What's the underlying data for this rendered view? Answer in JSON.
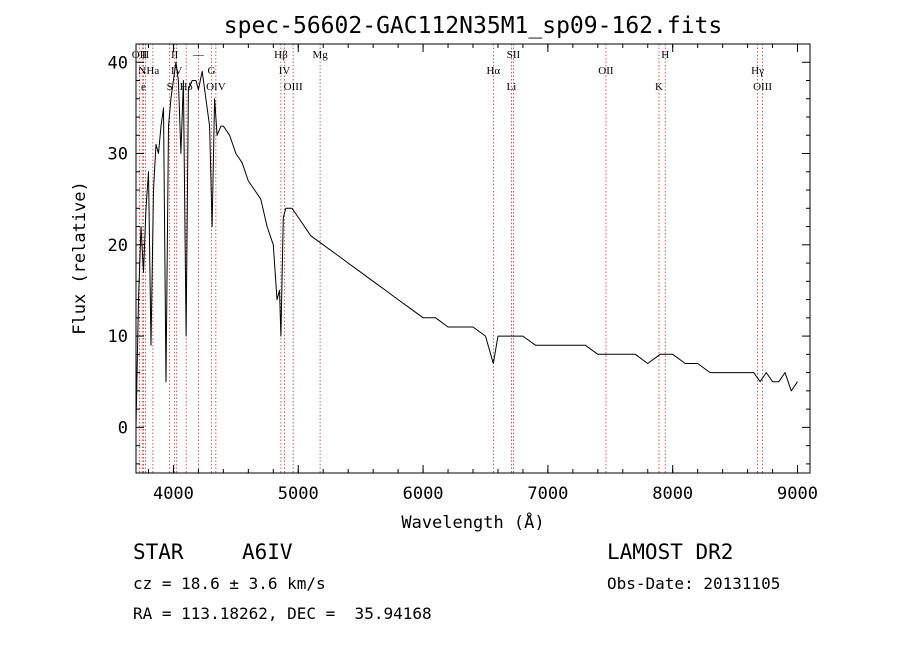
{
  "chart_data": {
    "type": "line",
    "title": "spec-56602-GAC112N35M1_sp09-162.fits",
    "xlabel": "Wavelength (Å)",
    "ylabel": "Flux (relative)",
    "xlim": [
      3700,
      9100
    ],
    "ylim": [
      -5,
      42
    ],
    "x_ticks": [
      4000,
      5000,
      6000,
      7000,
      8000,
      9000
    ],
    "y_ticks": [
      0,
      10,
      20,
      30,
      40
    ],
    "x_tick_labels": [
      "4000",
      "5000",
      "6000",
      "7000",
      "8000",
      "9000"
    ],
    "y_tick_labels": [
      "0",
      "10",
      "20",
      "30",
      "40"
    ],
    "grid": false,
    "series": [
      {
        "x": [
          3700,
          3720,
          3740,
          3760,
          3780,
          3800,
          3820,
          3840,
          3860,
          3880,
          3900,
          3920,
          3940,
          3960,
          3980,
          4000,
          4020,
          4040,
          4060,
          4080,
          4101,
          4120,
          4150,
          4180,
          4200,
          4230,
          4260,
          4290,
          4310,
          4330,
          4350,
          4380,
          4400,
          4450,
          4500,
          4550,
          4600,
          4650,
          4700,
          4750,
          4800,
          4830,
          4850,
          4861,
          4880,
          4900,
          4950,
          5000,
          5100,
          5200,
          5300,
          5400,
          5500,
          5600,
          5700,
          5800,
          5900,
          6000,
          6100,
          6200,
          6300,
          6400,
          6500,
          6563,
          6600,
          6700,
          6800,
          6900,
          7000,
          7100,
          7200,
          7300,
          7400,
          7500,
          7600,
          7700,
          7800,
          7900,
          8000,
          8100,
          8200,
          8300,
          8400,
          8500,
          8600,
          8650,
          8700,
          8750,
          8800,
          8850,
          8900,
          8950,
          9000
        ],
        "y": [
          0,
          14,
          22,
          17,
          24,
          28,
          9,
          26,
          31,
          30,
          33,
          35,
          5,
          33,
          36,
          38,
          40,
          38,
          30,
          38,
          10,
          37,
          38,
          38,
          37,
          39,
          36,
          33,
          22,
          36,
          32,
          33,
          33,
          32,
          30,
          29,
          27,
          26,
          25,
          22,
          20,
          14,
          15,
          10,
          23,
          24,
          24,
          23,
          21,
          20,
          19,
          18,
          17,
          16,
          15,
          14,
          13,
          12,
          12,
          11,
          11,
          11,
          10,
          7,
          10,
          10,
          10,
          9,
          9,
          9,
          9,
          9,
          8,
          8,
          8,
          8,
          7,
          8,
          8,
          7,
          7,
          6,
          6,
          6,
          6,
          6,
          5,
          6,
          5,
          5,
          6,
          4,
          5
        ]
      }
    ],
    "line_markers": [
      {
        "wavelength": 3727,
        "label": "OII"
      },
      {
        "wavelength": 3750,
        "label": "N"
      },
      {
        "wavelength": 3760,
        "label": "e"
      },
      {
        "wavelength": 3776,
        "label": "II"
      },
      {
        "wavelength": 3835,
        "label": "Ha"
      },
      {
        "wavelength": 3970,
        "label": "S"
      },
      {
        "wavelength": 4010,
        "label": "II"
      },
      {
        "wavelength": 4026,
        "label": "IV"
      },
      {
        "wavelength": 4102,
        "label": "Hδ"
      },
      {
        "wavelength": 4200,
        "label": "—"
      },
      {
        "wavelength": 4305,
        "label": "G"
      },
      {
        "wavelength": 4340,
        "label": "OIV"
      },
      {
        "wavelength": 4861,
        "label": "Hβ"
      },
      {
        "wavelength": 4890,
        "label": "IV"
      },
      {
        "wavelength": 4959,
        "label": "OIII"
      },
      {
        "wavelength": 5175,
        "label": "Mg"
      },
      {
        "wavelength": 6563,
        "label": "Hα"
      },
      {
        "wavelength": 6708,
        "label": "Li"
      },
      {
        "wavelength": 6724,
        "label": "SII"
      },
      {
        "wavelength": 7465,
        "label": "OII"
      },
      {
        "wavelength": 7890,
        "label": "K"
      },
      {
        "wavelength": 7940,
        "label": "H"
      },
      {
        "wavelength": 8680,
        "label": "Hγ"
      },
      {
        "wavelength": 8720,
        "label": "OIII"
      }
    ]
  },
  "labels": {
    "class": "STAR",
    "subclass": "A6IV",
    "survey": "LAMOST DR2",
    "cz": "cz = 18.6 ± 3.6 km/s",
    "obs_date": "Obs-Date: 20131105",
    "coords": "RA = 113.18262, DEC =  35.94168"
  }
}
